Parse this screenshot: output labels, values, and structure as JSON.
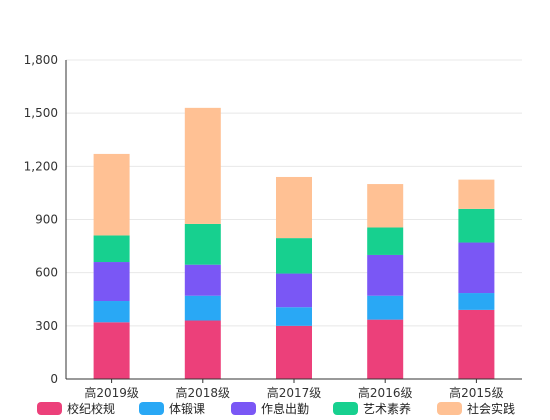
{
  "chart_data": {
    "type": "bar",
    "stacked": true,
    "categories": [
      "高2019级",
      "高2018级",
      "高2017级",
      "高2016级",
      "高2015级"
    ],
    "series": [
      {
        "name": "校纪校规",
        "color": "#ec407a",
        "values": [
          320,
          330,
          300,
          335,
          390
        ]
      },
      {
        "name": "体锻课",
        "color": "#29a8f5",
        "values": [
          120,
          140,
          105,
          135,
          95
        ]
      },
      {
        "name": "作息出勤",
        "color": "#7a57f5",
        "values": [
          220,
          175,
          190,
          230,
          285
        ]
      },
      {
        "name": "艺术素养",
        "color": "#17d08f",
        "values": [
          150,
          230,
          200,
          155,
          190
        ]
      },
      {
        "name": "社会实践",
        "color": "#ffc194",
        "values": [
          460,
          655,
          345,
          245,
          165
        ]
      }
    ],
    "yticks": [
      "0",
      "300",
      "600",
      "900",
      "1,200",
      "1,500",
      "1,800"
    ],
    "ylim": [
      0,
      1800
    ],
    "grid": true,
    "legend_position": "bottom"
  }
}
